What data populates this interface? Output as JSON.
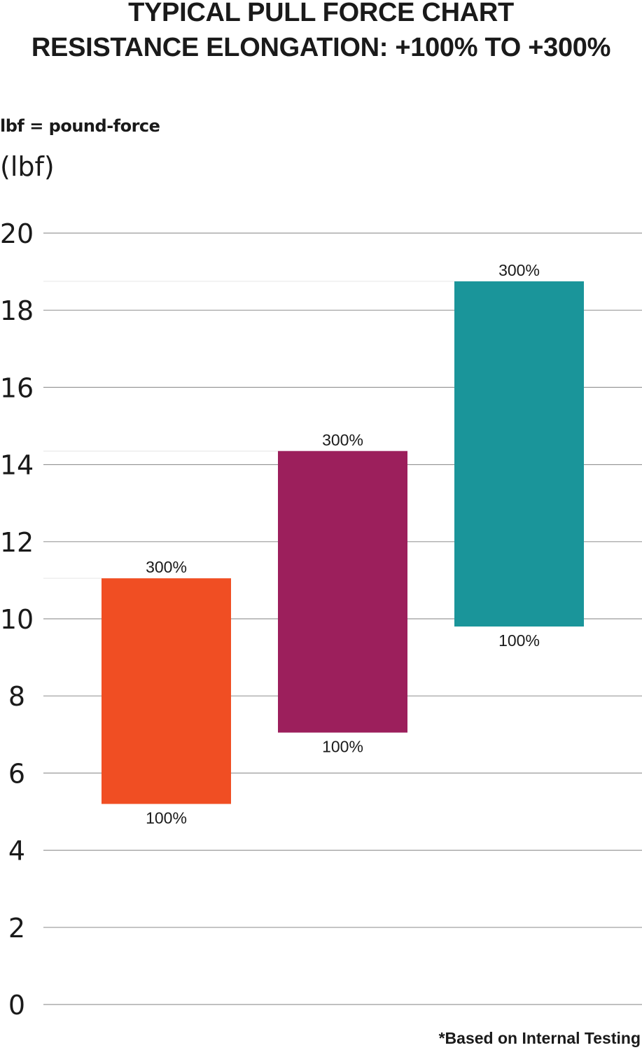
{
  "chart_data": {
    "type": "bar",
    "subtype": "floating-range",
    "title": "TYPICAL PULL FORCE CHART",
    "subtitle": "RESISTANCE ELONGATION: +100% TO +300%",
    "note": "lbf = pound-force",
    "ylabel": "(lbf)",
    "ylim": [
      0,
      20
    ],
    "yticks": [
      0,
      2,
      4,
      6,
      8,
      10,
      12,
      14,
      16,
      18,
      20
    ],
    "grid": true,
    "footnote": "*Based on Internal Testing",
    "bars": [
      {
        "low": 5.2,
        "high": 11.05,
        "low_label": "100%",
        "high_label": "300%",
        "color": "#f04e23"
      },
      {
        "low": 7.05,
        "high": 14.35,
        "low_label": "100%",
        "high_label": "300%",
        "color": "#9c1f5c"
      },
      {
        "low": 9.8,
        "high": 18.75,
        "low_label": "100%",
        "high_label": "300%",
        "color": "#1a959a"
      }
    ]
  }
}
